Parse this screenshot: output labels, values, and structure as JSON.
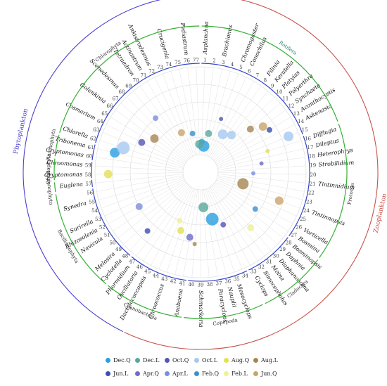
{
  "chart_data": {
    "type": "scatter",
    "subtype": "polar-bubble",
    "title": "",
    "legend_position": "bottom",
    "groups": [
      {
        "name": "Phytoplankton",
        "color": "#4b3fd1",
        "start": 45,
        "end": 77
      },
      {
        "name": "Zooplankton",
        "color": "#c8524a",
        "start": 1,
        "end": 44
      }
    ],
    "phyla": [
      {
        "name": "Rotifera",
        "color": "#1f7f62",
        "start": 1,
        "end": 15
      },
      {
        "name": "Protozoa",
        "color": "#333333",
        "start": 16,
        "end": 27
      },
      {
        "name": "Cladocera",
        "color": "#333333",
        "start": 28,
        "end": 33
      },
      {
        "name": "Copepoda",
        "color": "#333333",
        "start": 34,
        "end": 40
      },
      {
        "name": "Cyanobacteria",
        "color": "#333333",
        "start": 41,
        "end": 47
      },
      {
        "name": "Bacillariophyta",
        "color": "#333333",
        "start": 48,
        "end": 56
      },
      {
        "name": "Euglenophyta",
        "color": "#333333",
        "start": 57,
        "end": 57
      },
      {
        "name": "Cryptophyta",
        "color": "#111111",
        "start": 58,
        "end": 59
      },
      {
        "name": "Xanthophyta",
        "color": "#333333",
        "start": 60,
        "end": 61
      },
      {
        "name": "Chlorophyta",
        "color": "#333333",
        "start": 62,
        "end": 77
      }
    ],
    "taxa": [
      {
        "id": "1",
        "label": "Asplanchna"
      },
      {
        "id": "2",
        "label": ""
      },
      {
        "id": "3",
        "label": "Brachionus"
      },
      {
        "id": "4",
        "label": ""
      },
      {
        "id": "5",
        "label": "Chromogaster"
      },
      {
        "id": "6",
        "label": "Conochilus"
      },
      {
        "id": "7",
        "label": ""
      },
      {
        "id": "8",
        "label": "Filinia"
      },
      {
        "id": "9",
        "label": "Keratella"
      },
      {
        "id": "10",
        "label": "Platyias"
      },
      {
        "id": "11",
        "label": "Polyarthra"
      },
      {
        "id": "12",
        "label": "Synchaeta"
      },
      {
        "id": "13",
        "label": "Acanthocystis"
      },
      {
        "id": "14",
        "label": "Askenasia"
      },
      {
        "id": "15",
        "label": ""
      },
      {
        "id": "16",
        "label": "Difflugia"
      },
      {
        "id": "17",
        "label": "Dileptus"
      },
      {
        "id": "18",
        "label": "Heterophrys"
      },
      {
        "id": "19",
        "label": "Strobilidium"
      },
      {
        "id": "20",
        "label": ""
      },
      {
        "id": "21",
        "label": "Tintinnidium"
      },
      {
        "id": "22",
        "label": ""
      },
      {
        "id": "23",
        "label": ""
      },
      {
        "id": "24",
        "label": "Tintinnopsis"
      },
      {
        "id": "25",
        "label": ""
      },
      {
        "id": "26",
        "label": "Vorticella"
      },
      {
        "id": "27",
        "label": "Bosmina"
      },
      {
        "id": "28",
        "label": "Bosminopsis"
      },
      {
        "id": "29",
        "label": "Daphnia"
      },
      {
        "id": "30",
        "label": "Diaphanosoma"
      },
      {
        "id": "31",
        "label": "Moina"
      },
      {
        "id": "32",
        "label": "Simocephalus"
      },
      {
        "id": "33",
        "label": "Cyclops"
      },
      {
        "id": "34",
        "label": ""
      },
      {
        "id": "35",
        "label": "Mesocyclops"
      },
      {
        "id": "36",
        "label": "Nauplii"
      },
      {
        "id": "37",
        "label": "Paracyclops"
      },
      {
        "id": "38",
        "label": ""
      },
      {
        "id": "39",
        "label": "Schmackeria"
      },
      {
        "id": "40",
        "label": ""
      },
      {
        "id": "41",
        "label": "Anabaena"
      },
      {
        "id": "42",
        "label": ""
      },
      {
        "id": "43",
        "label": "Chroococcus"
      },
      {
        "id": "44",
        "label": ""
      },
      {
        "id": "45",
        "label": "Dactylococcopsis"
      },
      {
        "id": "46",
        "label": "Oscillatoria"
      },
      {
        "id": "47",
        "label": "Phormidium"
      },
      {
        "id": "48",
        "label": "Cyclotella"
      },
      {
        "id": "49",
        "label": "Melosira"
      },
      {
        "id": "50",
        "label": ""
      },
      {
        "id": "51",
        "label": "Navicula"
      },
      {
        "id": "52",
        "label": "Rhizosolenia"
      },
      {
        "id": "53",
        "label": "Surirella"
      },
      {
        "id": "54",
        "label": ""
      },
      {
        "id": "55",
        "label": "Synedra"
      },
      {
        "id": "56",
        "label": ""
      },
      {
        "id": "57",
        "label": "Euglena"
      },
      {
        "id": "58",
        "label": "Cryptomonas"
      },
      {
        "id": "59",
        "label": "Chroomonas"
      },
      {
        "id": "60",
        "label": "Cryptomonas"
      },
      {
        "id": "61",
        "label": "Tribonema"
      },
      {
        "id": "62",
        "label": "Chlorella"
      },
      {
        "id": "63",
        "label": ""
      },
      {
        "id": "64",
        "label": "Cosmarium"
      },
      {
        "id": "65",
        "label": ""
      },
      {
        "id": "66",
        "label": "Golenkinia"
      },
      {
        "id": "67",
        "label": ""
      },
      {
        "id": "68",
        "label": "Scenedesmus"
      },
      {
        "id": "69",
        "label": ""
      },
      {
        "id": "70",
        "label": "Tetraedron"
      },
      {
        "id": "71",
        "label": "Actinastrum"
      },
      {
        "id": "72",
        "label": "Ankistrodesmus"
      },
      {
        "id": "73",
        "label": ""
      },
      {
        "id": "74",
        "label": "Crucigenia"
      },
      {
        "id": "75",
        "label": ""
      },
      {
        "id": "76",
        "label": "Pediastrum"
      },
      {
        "id": "77",
        "label": ""
      }
    ],
    "series": [
      {
        "name": "Dec.Q",
        "color": "#2a9fe0"
      },
      {
        "name": "Dec.L",
        "color": "#5aa89b"
      },
      {
        "name": "Oct.Q",
        "color": "#5555b5"
      },
      {
        "name": "Oct.L",
        "color": "#a6c8f0"
      },
      {
        "name": "Aug.Q",
        "color": "#e3e055"
      },
      {
        "name": "Aug.L",
        "color": "#a88550"
      },
      {
        "name": "Jun.L",
        "color": "#3a4fb0"
      },
      {
        "name": "Apr.Q",
        "color": "#6d6dc8"
      },
      {
        "name": "Apr.L",
        "color": "#7a8ee0"
      },
      {
        "name": "Feb.Q",
        "color": "#3d8fd0"
      },
      {
        "name": "Feb.L",
        "color": "#eef09a"
      },
      {
        "name": "Jun.Q",
        "color": "#c9a46a"
      }
    ],
    "points": [
      {
        "s": 0,
        "taxon": 1,
        "r": 0.15,
        "size": 4
      },
      {
        "s": 1,
        "taxon": 3,
        "r": 0.25,
        "size": 5
      },
      {
        "s": 2,
        "taxon": 5,
        "r": 0.45,
        "size": 3
      },
      {
        "s": 3,
        "taxon": 9,
        "r": 0.35,
        "size": 6
      },
      {
        "s": 5,
        "taxon": 11,
        "r": 0.55,
        "size": 5
      },
      {
        "s": 11,
        "taxon": 12,
        "r": 0.68,
        "size": 6
      },
      {
        "s": 6,
        "taxon": 13,
        "r": 0.72,
        "size": 4
      },
      {
        "s": 3,
        "taxon": 15,
        "r": 0.88,
        "size": 7
      },
      {
        "s": 4,
        "taxon": 16,
        "r": 0.6,
        "size": 3
      },
      {
        "s": 7,
        "taxon": 18,
        "r": 0.5,
        "size": 3
      },
      {
        "s": 8,
        "taxon": 20,
        "r": 0.4,
        "size": 3
      },
      {
        "s": 5,
        "taxon": 23,
        "r": 0.3,
        "size": 8
      },
      {
        "s": 11,
        "taxon": 24,
        "r": 0.75,
        "size": 6
      },
      {
        "s": 9,
        "taxon": 27,
        "r": 0.55,
        "size": 4
      },
      {
        "s": 10,
        "taxon": 30,
        "r": 0.65,
        "size": 5
      },
      {
        "s": 2,
        "taxon": 34,
        "r": 0.45,
        "size": 4
      },
      {
        "s": 0,
        "taxon": 36,
        "r": 0.35,
        "size": 9
      },
      {
        "s": 1,
        "taxon": 38,
        "r": 0.2,
        "size": 7
      },
      {
        "s": 7,
        "taxon": 41,
        "r": 0.55,
        "size": 5
      },
      {
        "s": 4,
        "taxon": 43,
        "r": 0.5,
        "size": 5
      },
      {
        "s": 6,
        "taxon": 48,
        "r": 0.7,
        "size": 4
      },
      {
        "s": 8,
        "taxon": 52,
        "r": 0.6,
        "size": 5
      },
      {
        "s": 4,
        "taxon": 58,
        "r": 0.85,
        "size": 6
      },
      {
        "s": 0,
        "taxon": 61,
        "r": 0.8,
        "size": 7
      },
      {
        "s": 3,
        "taxon": 62,
        "r": 0.72,
        "size": 9
      },
      {
        "s": 2,
        "taxon": 64,
        "r": 0.55,
        "size": 5
      },
      {
        "s": 5,
        "taxon": 66,
        "r": 0.45,
        "size": 6
      },
      {
        "s": 8,
        "taxon": 69,
        "r": 0.6,
        "size": 4
      },
      {
        "s": 11,
        "taxon": 72,
        "r": 0.3,
        "size": 5
      },
      {
        "s": 9,
        "taxon": 75,
        "r": 0.25,
        "size": 4
      },
      {
        "s": 0,
        "taxon": 2,
        "r": 0.1,
        "size": 8
      },
      {
        "s": 1,
        "taxon": 77,
        "r": 0.12,
        "size": 6
      },
      {
        "s": 3,
        "taxon": 7,
        "r": 0.3,
        "size": 7
      },
      {
        "s": 10,
        "taxon": 44,
        "r": 0.4,
        "size": 4
      },
      {
        "s": 5,
        "taxon": 40,
        "r": 0.62,
        "size": 3
      }
    ]
  },
  "legend": {
    "items": [
      {
        "label": "Dec.Q",
        "color": "#2a9fe0"
      },
      {
        "label": "Dec.L",
        "color": "#5aa89b"
      },
      {
        "label": "Oct.Q",
        "color": "#5555b5"
      },
      {
        "label": "Oct.L",
        "color": "#a6c8f0"
      },
      {
        "label": "Aug.Q",
        "color": "#e3e055"
      },
      {
        "label": "Aug.L",
        "color": "#a88550"
      },
      {
        "label": "Jun.L",
        "color": "#3a4fb0"
      },
      {
        "label": "Apr.Q",
        "color": "#6d6dc8"
      },
      {
        "label": "Apr.L",
        "color": "#7a8ee0"
      },
      {
        "label": "Feb.Q",
        "color": "#3d8fd0"
      },
      {
        "label": "Feb.L",
        "color": "#eef09a"
      },
      {
        "label": "Jun.Q",
        "color": "#c9a46a"
      }
    ]
  }
}
